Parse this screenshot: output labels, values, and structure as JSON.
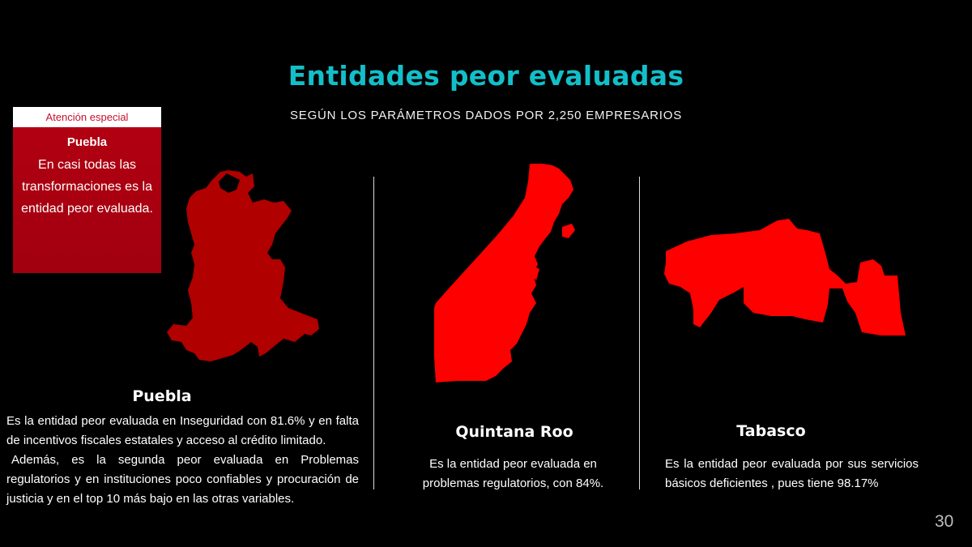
{
  "slide": {
    "title": "Entidades peor evaluadas",
    "subtitle": "SEGÚN LOS PARÁMETROS DADOS POR 2,250 EMPRESARIOS",
    "page_number": "30"
  },
  "callout": {
    "header": "Atención especial",
    "state": "Puebla",
    "text": "En casi todas las transformaciones es la entidad peor evaluada."
  },
  "states": [
    {
      "name": "Puebla",
      "map_icon": "puebla-map-icon",
      "color": "#b00000",
      "paragraphs": [
        "Es la entidad peor evaluada en Inseguridad con 81.6% y en falta de incentivos fiscales estatales y acceso al crédito limitado.",
        "Además, es la segunda peor evaluada en Problemas regulatorios y en instituciones poco confiables y procuración de justicia y en el top 10 más bajo en las otras variables."
      ]
    },
    {
      "name": "Quintana Roo",
      "map_icon": "quintana-roo-map-icon",
      "color": "#ff0000",
      "paragraphs": [
        "Es la entidad peor evaluada en problemas regulatorios, con 84%."
      ]
    },
    {
      "name": "Tabasco",
      "map_icon": "tabasco-map-icon",
      "color": "#ff0000",
      "paragraphs": [
        "Es la entidad peor evaluada por sus servicios básicos deficientes , pues tiene 98.17%"
      ]
    }
  ]
}
